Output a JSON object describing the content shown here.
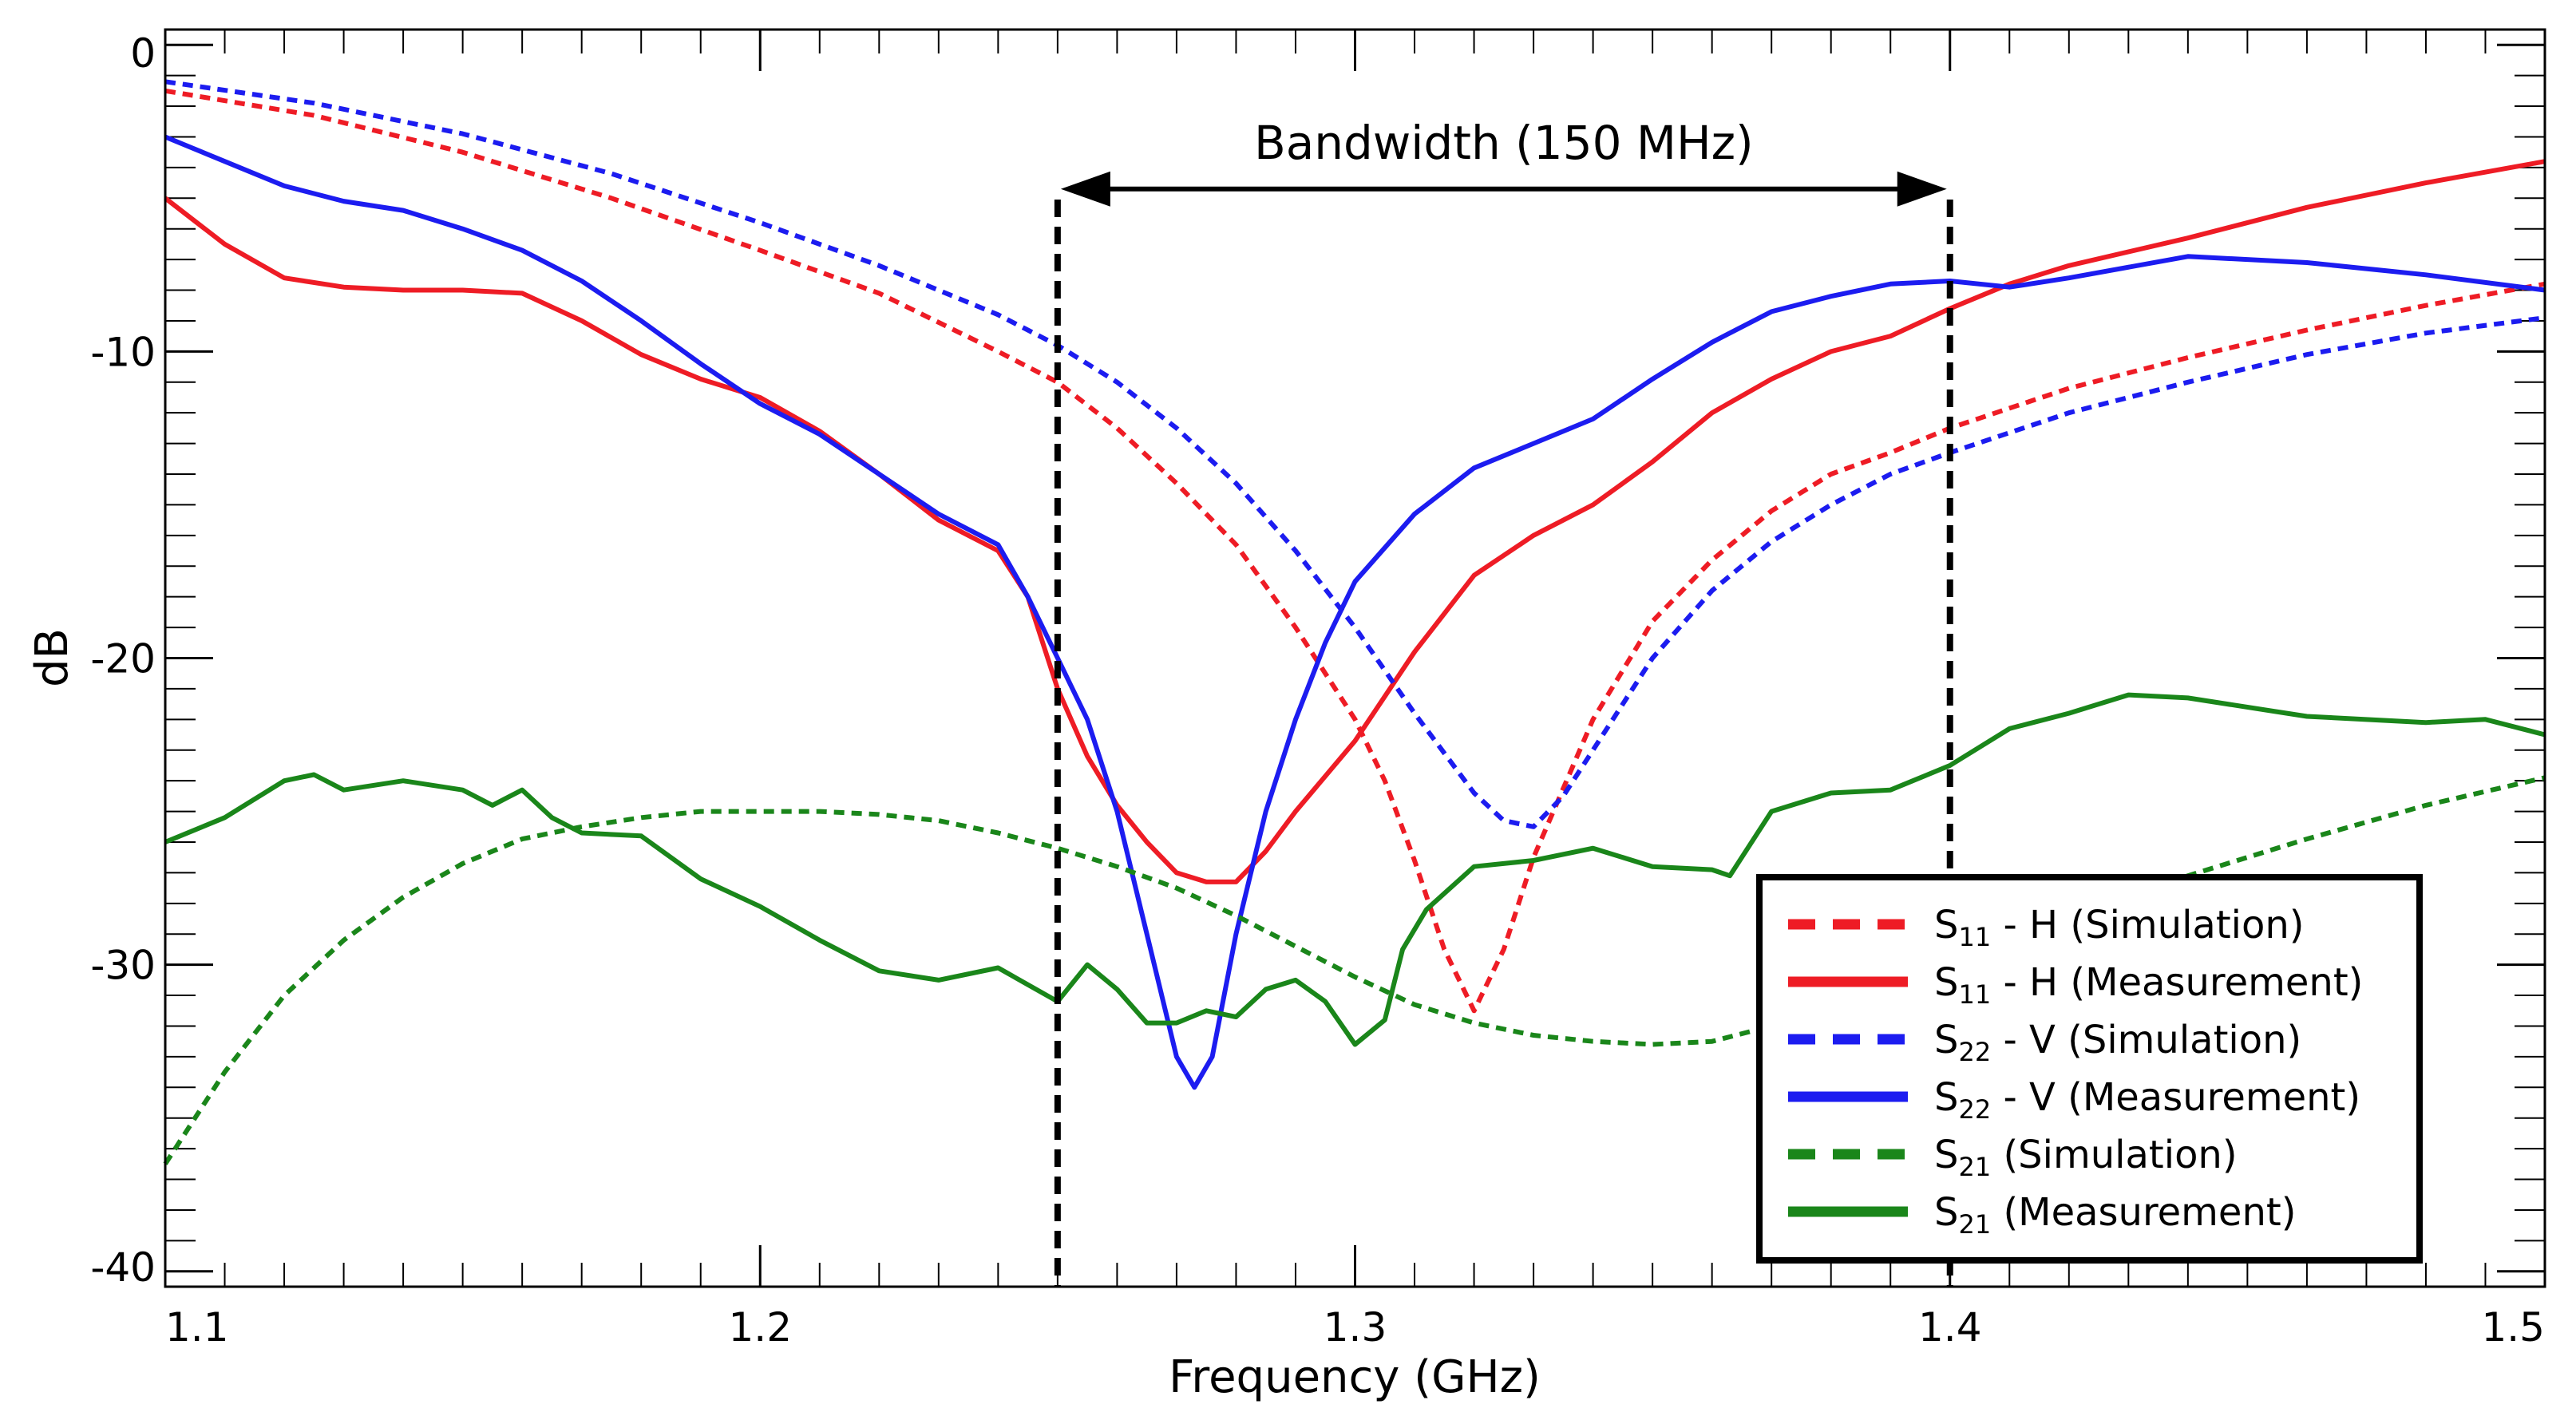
{
  "chart_data": {
    "type": "line",
    "xlabel": "Frequency (GHz)",
    "ylabel": "dB",
    "xlim": [
      1.1,
      1.5
    ],
    "ylim": [
      -40.5,
      0.5
    ],
    "x_ticks": [
      1.1,
      1.2,
      1.3,
      1.4,
      1.5
    ],
    "x_tick_labels": [
      "1.1",
      "1.2",
      "1.3",
      "1.4",
      "1.5"
    ],
    "x_minor_step": 0.01,
    "y_ticks": [
      0,
      -10,
      -20,
      -30,
      -40
    ],
    "y_tick_labels": [
      "0",
      "-10",
      "-20",
      "-30",
      "-40"
    ],
    "y_minor_step": 1,
    "bandwidth": {
      "label": "Bandwidth (150 MHz)",
      "from": 1.25,
      "to": 1.4,
      "arrow_y": -4.7
    },
    "series": [
      {
        "name": "S11 - H (Simulation)",
        "sym": "S",
        "sub": "11",
        "suffix": " - H (Simulation)",
        "color": "#ee1c25",
        "style": "dashed",
        "x": [
          1.1,
          1.125,
          1.15,
          1.175,
          1.2,
          1.22,
          1.24,
          1.25,
          1.26,
          1.27,
          1.28,
          1.29,
          1.3,
          1.305,
          1.31,
          1.315,
          1.32,
          1.325,
          1.33,
          1.34,
          1.35,
          1.36,
          1.37,
          1.38,
          1.39,
          1.4,
          1.42,
          1.44,
          1.46,
          1.48,
          1.5
        ],
        "y": [
          -1.5,
          -2.3,
          -3.5,
          -5.0,
          -6.7,
          -8.1,
          -10.0,
          -11.0,
          -12.5,
          -14.3,
          -16.3,
          -19.0,
          -22.0,
          -24.0,
          -26.6,
          -29.5,
          -31.5,
          -29.5,
          -26.5,
          -22.0,
          -18.8,
          -16.8,
          -15.2,
          -14.0,
          -13.3,
          -12.5,
          -11.2,
          -10.2,
          -9.3,
          -8.5,
          -7.8
        ]
      },
      {
        "name": "S11 - H (Measurement)",
        "sym": "S",
        "sub": "11",
        "suffix": " - H (Measurement)",
        "color": "#ee1c25",
        "style": "solid",
        "x": [
          1.1,
          1.11,
          1.12,
          1.13,
          1.14,
          1.15,
          1.16,
          1.17,
          1.18,
          1.19,
          1.2,
          1.21,
          1.22,
          1.23,
          1.24,
          1.245,
          1.25,
          1.255,
          1.26,
          1.265,
          1.27,
          1.275,
          1.28,
          1.285,
          1.29,
          1.3,
          1.31,
          1.32,
          1.33,
          1.34,
          1.35,
          1.36,
          1.37,
          1.38,
          1.39,
          1.4,
          1.41,
          1.42,
          1.44,
          1.46,
          1.48,
          1.5
        ],
        "y": [
          -5.0,
          -6.5,
          -7.6,
          -7.9,
          -8.0,
          -8.0,
          -8.1,
          -9.0,
          -10.1,
          -10.9,
          -11.5,
          -12.6,
          -14.0,
          -15.5,
          -16.5,
          -18.0,
          -21.0,
          -23.2,
          -24.8,
          -26.0,
          -27.0,
          -27.3,
          -27.3,
          -26.3,
          -25.0,
          -22.7,
          -19.8,
          -17.3,
          -16.0,
          -15.0,
          -13.6,
          -12.0,
          -10.9,
          -10.0,
          -9.5,
          -8.6,
          -7.8,
          -7.2,
          -6.3,
          -5.3,
          -4.5,
          -3.8
        ]
      },
      {
        "name": "S22 - V (Simulation)",
        "sym": "S",
        "sub": "22",
        "suffix": " - V (Simulation)",
        "color": "#1c1cf0",
        "style": "dashed",
        "x": [
          1.1,
          1.125,
          1.15,
          1.175,
          1.2,
          1.22,
          1.24,
          1.25,
          1.26,
          1.27,
          1.28,
          1.29,
          1.3,
          1.31,
          1.32,
          1.325,
          1.33,
          1.335,
          1.34,
          1.35,
          1.36,
          1.37,
          1.38,
          1.39,
          1.4,
          1.42,
          1.44,
          1.46,
          1.48,
          1.5
        ],
        "y": [
          -1.2,
          -1.9,
          -2.9,
          -4.2,
          -5.8,
          -7.2,
          -8.8,
          -9.8,
          -11.0,
          -12.5,
          -14.3,
          -16.5,
          -19.0,
          -21.8,
          -24.4,
          -25.3,
          -25.5,
          -24.5,
          -23.0,
          -20.0,
          -17.8,
          -16.2,
          -15.0,
          -14.0,
          -13.3,
          -12.0,
          -11.0,
          -10.1,
          -9.4,
          -8.9
        ]
      },
      {
        "name": "S22 - V (Measurement)",
        "sym": "S",
        "sub": "22",
        "suffix": " - V (Measurement)",
        "color": "#1c1cf0",
        "style": "solid",
        "x": [
          1.1,
          1.11,
          1.12,
          1.13,
          1.14,
          1.15,
          1.16,
          1.17,
          1.18,
          1.19,
          1.2,
          1.21,
          1.22,
          1.23,
          1.24,
          1.245,
          1.25,
          1.255,
          1.26,
          1.265,
          1.27,
          1.273,
          1.276,
          1.28,
          1.285,
          1.29,
          1.295,
          1.3,
          1.31,
          1.32,
          1.33,
          1.34,
          1.35,
          1.36,
          1.37,
          1.38,
          1.39,
          1.4,
          1.41,
          1.42,
          1.44,
          1.46,
          1.48,
          1.5
        ],
        "y": [
          -3.0,
          -3.8,
          -4.6,
          -5.1,
          -5.4,
          -6.0,
          -6.7,
          -7.7,
          -9.0,
          -10.4,
          -11.7,
          -12.7,
          -14.0,
          -15.3,
          -16.3,
          -18.0,
          -20.0,
          -22.0,
          -25.0,
          -29.0,
          -33.0,
          -34.0,
          -33.0,
          -29.0,
          -25.0,
          -22.0,
          -19.5,
          -17.5,
          -15.3,
          -13.8,
          -13.0,
          -12.2,
          -10.9,
          -9.7,
          -8.7,
          -8.2,
          -7.8,
          -7.7,
          -7.9,
          -7.6,
          -6.9,
          -7.1,
          -7.5,
          -8.0
        ]
      },
      {
        "name": "S21 (Simulation)",
        "sym": "S",
        "sub": "21",
        "suffix": " (Simulation)",
        "color": "#1a861a",
        "style": "dashed",
        "x": [
          1.1,
          1.11,
          1.12,
          1.13,
          1.14,
          1.15,
          1.16,
          1.17,
          1.18,
          1.19,
          1.2,
          1.21,
          1.22,
          1.23,
          1.24,
          1.25,
          1.26,
          1.27,
          1.28,
          1.29,
          1.3,
          1.31,
          1.32,
          1.33,
          1.34,
          1.35,
          1.36,
          1.37,
          1.38,
          1.39,
          1.4,
          1.42,
          1.44,
          1.46,
          1.48,
          1.5
        ],
        "y": [
          -36.5,
          -33.5,
          -31.0,
          -29.2,
          -27.8,
          -26.7,
          -25.9,
          -25.5,
          -25.2,
          -25.0,
          -25.0,
          -25.0,
          -25.1,
          -25.3,
          -25.7,
          -26.2,
          -26.8,
          -27.5,
          -28.4,
          -29.4,
          -30.4,
          -31.3,
          -31.9,
          -32.3,
          -32.5,
          -32.6,
          -32.5,
          -32.0,
          -31.4,
          -30.7,
          -29.9,
          -28.5,
          -27.1,
          -25.9,
          -24.8,
          -23.9
        ]
      },
      {
        "name": "S21 (Measurement)",
        "sym": "S",
        "sub": "21",
        "suffix": " (Measurement)",
        "color": "#1a861a",
        "style": "solid",
        "x": [
          1.1,
          1.11,
          1.12,
          1.125,
          1.13,
          1.14,
          1.15,
          1.155,
          1.16,
          1.165,
          1.17,
          1.18,
          1.19,
          1.2,
          1.21,
          1.22,
          1.23,
          1.24,
          1.25,
          1.255,
          1.26,
          1.265,
          1.27,
          1.275,
          1.28,
          1.285,
          1.29,
          1.295,
          1.3,
          1.305,
          1.308,
          1.312,
          1.32,
          1.33,
          1.34,
          1.35,
          1.36,
          1.363,
          1.37,
          1.38,
          1.39,
          1.4,
          1.41,
          1.42,
          1.43,
          1.44,
          1.46,
          1.48,
          1.49,
          1.5
        ],
        "y": [
          -26.0,
          -25.2,
          -24.0,
          -23.8,
          -24.3,
          -24.0,
          -24.3,
          -24.8,
          -24.3,
          -25.2,
          -25.7,
          -25.8,
          -27.2,
          -28.1,
          -29.2,
          -30.2,
          -30.5,
          -30.1,
          -31.2,
          -30.0,
          -30.8,
          -31.9,
          -31.9,
          -31.5,
          -31.7,
          -30.8,
          -30.5,
          -31.2,
          -32.6,
          -31.8,
          -29.5,
          -28.2,
          -26.8,
          -26.6,
          -26.2,
          -26.8,
          -26.9,
          -27.1,
          -25.0,
          -24.4,
          -24.3,
          -23.5,
          -22.3,
          -21.8,
          -21.2,
          -21.3,
          -21.9,
          -22.1,
          -22.0,
          -22.5
        ]
      }
    ]
  }
}
